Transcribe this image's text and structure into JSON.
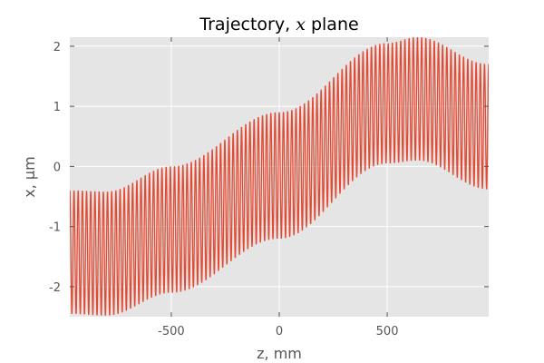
{
  "chart_data": {
    "type": "line",
    "title_prefix": "Trajectory, ",
    "title_var": "x",
    "title_suffix": " plane",
    "xlabel": "z, mm",
    "ylabel": "x, μm",
    "xlim": [
      -970,
      970
    ],
    "ylim": [
      -2.5,
      2.15
    ],
    "xticks": [
      -500,
      0,
      500
    ],
    "xtick_labels": [
      "-500",
      "0",
      "500"
    ],
    "yticks": [
      -2,
      -1,
      0,
      1,
      2
    ],
    "ytick_labels": [
      "-2",
      "-1",
      "0",
      "1",
      "2"
    ],
    "grid": true,
    "series": [
      {
        "color": "#e24a33",
        "oscillation_periods": 100,
        "envelope_upper": {
          "z": [
            -970,
            -800,
            -500,
            0,
            500,
            640,
            970
          ],
          "x": [
            -0.4,
            -0.42,
            0.0,
            0.9,
            2.05,
            2.15,
            1.7
          ]
        },
        "envelope_lower": {
          "z": [
            -970,
            -800,
            -500,
            0,
            500,
            640,
            970
          ],
          "x": [
            -2.45,
            -2.48,
            -2.1,
            -1.2,
            0.05,
            0.1,
            -0.38
          ]
        }
      }
    ],
    "colors": {
      "background": "#e5e5e5",
      "grid": "#ffffff",
      "line": "#e24a33"
    }
  }
}
